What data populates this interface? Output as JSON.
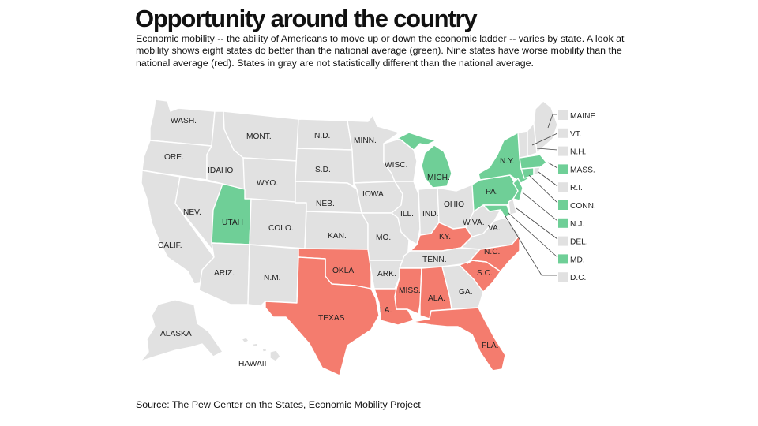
{
  "title": "Opportunity around the country",
  "description": "Economic mobility -- the ability of Americans to move up or down the economic ladder -- varies by state. A look at mobility shows eight states do better than the national average (green). Nine states have worse mobility than the national average (red). States in gray are not statistically different than the national average.",
  "source": "Source: The Pew Center on the States, Economic Mobility Project",
  "colors": {
    "better": "#6fcf97",
    "worse": "#f47c6e",
    "no_difference": "#e1e1e1"
  },
  "states": {
    "wash": "WASH.",
    "ore": "ORE.",
    "calif": "CALIF.",
    "nev": "NEV.",
    "idaho": "IDAHO",
    "mont": "MONT.",
    "wyo": "WYO.",
    "utah": "UTAH",
    "colo": "COLO.",
    "ariz": "ARIZ.",
    "nm": "N.M.",
    "nd": "N.D.",
    "sd": "S.D.",
    "neb": "NEB.",
    "kan": "KAN.",
    "okla": "OKLA.",
    "texas": "TEXAS",
    "minn": "MINN.",
    "iowa": "IOWA",
    "mo": "MO.",
    "ark": "ARK.",
    "la": "LA.",
    "wisc": "WISC.",
    "ill": "ILL.",
    "mich": "MICH.",
    "ind": "IND.",
    "ohio": "OHIO",
    "ky": "KY.",
    "tenn": "TENN.",
    "miss": "MISS.",
    "ala": "ALA.",
    "ga": "GA.",
    "fla": "FLA.",
    "sc": "S.C.",
    "nc": "N.C.",
    "va": "VA.",
    "wva": "W.VA.",
    "pa": "PA.",
    "ny": "N.Y.",
    "alaska": "ALASKA",
    "hawaii": "HAWAII"
  },
  "legend_states": [
    {
      "label": "MAINE",
      "status": "no_difference"
    },
    {
      "label": "VT.",
      "status": "no_difference"
    },
    {
      "label": "N.H.",
      "status": "no_difference"
    },
    {
      "label": "MASS.",
      "status": "better"
    },
    {
      "label": "R.I.",
      "status": "no_difference"
    },
    {
      "label": "CONN.",
      "status": "better"
    },
    {
      "label": "N.J.",
      "status": "better"
    },
    {
      "label": "DEL.",
      "status": "no_difference"
    },
    {
      "label": "MD.",
      "status": "better"
    },
    {
      "label": "D.C.",
      "status": "no_difference"
    }
  ]
}
